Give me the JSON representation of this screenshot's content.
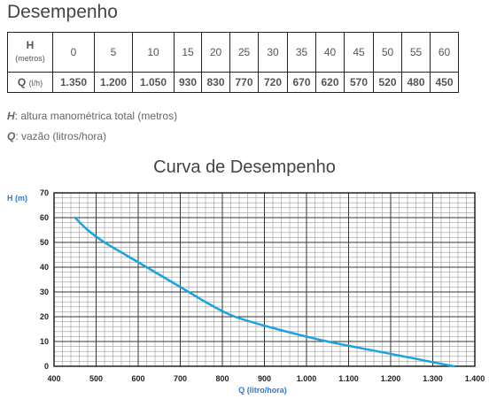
{
  "page": {
    "heading": "Desempenho"
  },
  "table": {
    "h_label": "H",
    "h_unit": "(metros)",
    "q_label": "Q",
    "q_unit": "(l/h)",
    "h_values": [
      "0",
      "5",
      "10",
      "15",
      "20",
      "25",
      "30",
      "35",
      "40",
      "45",
      "50",
      "55",
      "60"
    ],
    "q_values": [
      "1.350",
      "1.200",
      "1.050",
      "930",
      "830",
      "770",
      "720",
      "670",
      "620",
      "570",
      "520",
      "480",
      "450"
    ]
  },
  "legend": {
    "h_symbol": "H",
    "h_text": ": altura manométrica total (metros)",
    "q_symbol": "Q",
    "q_text": ": vazão (litros/hora)"
  },
  "colors": {
    "curve": "#1aa3e0",
    "axis_label": "#2a7bd6",
    "grid": "#9a9a9a"
  },
  "chart_data": {
    "type": "line",
    "title": "Curva de Desempenho",
    "xlabel": "Q (litro/hora)",
    "ylabel": "H (m)",
    "xlim": [
      400,
      1400
    ],
    "ylim": [
      0,
      70
    ],
    "x_ticks": [
      400,
      500,
      600,
      700,
      800,
      900,
      1000,
      1100,
      1200,
      1300,
      1400
    ],
    "x_tick_labels": [
      "400",
      "500",
      "600",
      "700",
      "800",
      "900",
      "1.000",
      "1.100",
      "1.200",
      "1.300",
      "1.400"
    ],
    "y_ticks": [
      0,
      10,
      20,
      30,
      40,
      50,
      60,
      70
    ],
    "y_tick_labels": [
      "0",
      "10",
      "20",
      "30",
      "40",
      "50",
      "60",
      "70"
    ],
    "grid": true,
    "series": [
      {
        "x": [
          450,
          480,
          520,
          570,
          620,
          670,
          720,
          770,
          830,
          930,
          1050,
          1200,
          1350
        ],
        "y": [
          60,
          55,
          50,
          45,
          40,
          35,
          30,
          25,
          20,
          15,
          10,
          5,
          0
        ]
      }
    ]
  }
}
